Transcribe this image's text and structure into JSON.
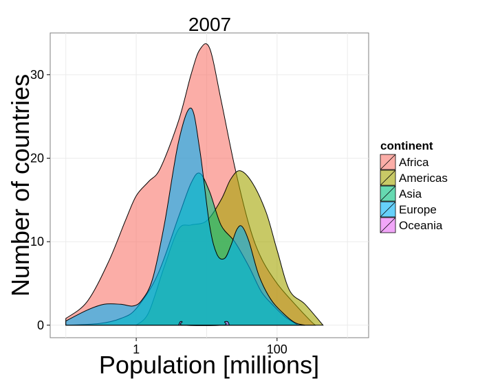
{
  "chart_data": {
    "type": "area",
    "subtype": "density-stacked-overlay",
    "title": "2007",
    "xlabel": "Population [millions]",
    "ylabel": "Number of countries",
    "x_scale": "log10",
    "xlim": [
      0.06,
      2000
    ],
    "ylim": [
      -1.5,
      35
    ],
    "x_ticks": [
      {
        "value": 1,
        "label": "1"
      },
      {
        "value": 100,
        "label": "100"
      }
    ],
    "y_ticks": [
      {
        "value": 0,
        "label": "0"
      },
      {
        "value": 10,
        "label": "10"
      },
      {
        "value": 20,
        "label": "20"
      },
      {
        "value": 30,
        "label": "30"
      }
    ],
    "grid": true,
    "legend": {
      "title": "continent",
      "position": "right",
      "entries": [
        {
          "name": "Africa",
          "color": "#F8766D"
        },
        {
          "name": "Americas",
          "color": "#A3A500"
        },
        {
          "name": "Asia",
          "color": "#00BF7D"
        },
        {
          "name": "Europe",
          "color": "#00B0F6"
        },
        {
          "name": "Oceania",
          "color": "#E76BF3"
        }
      ]
    },
    "series": [
      {
        "name": "Africa",
        "color": "#F8766D",
        "points": [
          [
            0.1,
            0.8
          ],
          [
            0.2,
            2.8
          ],
          [
            0.4,
            7.5
          ],
          [
            0.7,
            12.5
          ],
          [
            1.0,
            15.5
          ],
          [
            1.5,
            17.2
          ],
          [
            2.2,
            18.8
          ],
          [
            4,
            24.5
          ],
          [
            6,
            30
          ],
          [
            8,
            33
          ],
          [
            11,
            33.2
          ],
          [
            16,
            27
          ],
          [
            25,
            19
          ],
          [
            40,
            12
          ],
          [
            60,
            8
          ],
          [
            100,
            5
          ],
          [
            180,
            2.5
          ],
          [
            300,
            0.5
          ],
          [
            350,
            0
          ]
        ]
      },
      {
        "name": "Americas",
        "color": "#A3A500",
        "points": [
          [
            1.0,
            0
          ],
          [
            1.5,
            1.5
          ],
          [
            2.5,
            7
          ],
          [
            4,
            11.5
          ],
          [
            6,
            12
          ],
          [
            10,
            12.5
          ],
          [
            16,
            15
          ],
          [
            22,
            17.5
          ],
          [
            30,
            18.5
          ],
          [
            45,
            17
          ],
          [
            70,
            13.5
          ],
          [
            100,
            9
          ],
          [
            150,
            4.2
          ],
          [
            250,
            2.5
          ],
          [
            450,
            0
          ]
        ]
      },
      {
        "name": "Asia",
        "color": "#00BF7D",
        "points": [
          [
            0.1,
            0
          ],
          [
            0.3,
            0.2
          ],
          [
            0.6,
            0.8
          ],
          [
            1.0,
            2
          ],
          [
            2,
            6
          ],
          [
            4,
            13
          ],
          [
            6,
            17
          ],
          [
            8,
            18.2
          ],
          [
            11,
            16
          ],
          [
            16,
            12
          ],
          [
            25,
            10
          ],
          [
            40,
            7
          ],
          [
            60,
            4
          ],
          [
            90,
            2.3
          ],
          [
            130,
            1
          ],
          [
            200,
            0
          ]
        ]
      },
      {
        "name": "Europe",
        "color": "#00B0F6",
        "points": [
          [
            0.1,
            0.5
          ],
          [
            0.2,
            1.8
          ],
          [
            0.35,
            2.5
          ],
          [
            0.6,
            2.5
          ],
          [
            0.9,
            2.3
          ],
          [
            1.2,
            3
          ],
          [
            1.7,
            5.5
          ],
          [
            2.5,
            12
          ],
          [
            4,
            22
          ],
          [
            6,
            26
          ],
          [
            8,
            21
          ],
          [
            11,
            12
          ],
          [
            14,
            8.5
          ],
          [
            18,
            8
          ],
          [
            22,
            9.5
          ],
          [
            27,
            11.5
          ],
          [
            32,
            11.8
          ],
          [
            40,
            10
          ],
          [
            55,
            6
          ],
          [
            80,
            3.2
          ],
          [
            120,
            1.5
          ],
          [
            180,
            0.3
          ],
          [
            250,
            0
          ]
        ]
      },
      {
        "name": "Oceania",
        "color": "#E76BF3",
        "points": [
          [
            4.0,
            0
          ],
          [
            4.2,
            0.4
          ],
          [
            4.5,
            0.4
          ],
          [
            4.7,
            0
          ],
          [
            17,
            0
          ],
          [
            18,
            0.4
          ],
          [
            20,
            0.4
          ],
          [
            21,
            0
          ]
        ]
      }
    ]
  }
}
